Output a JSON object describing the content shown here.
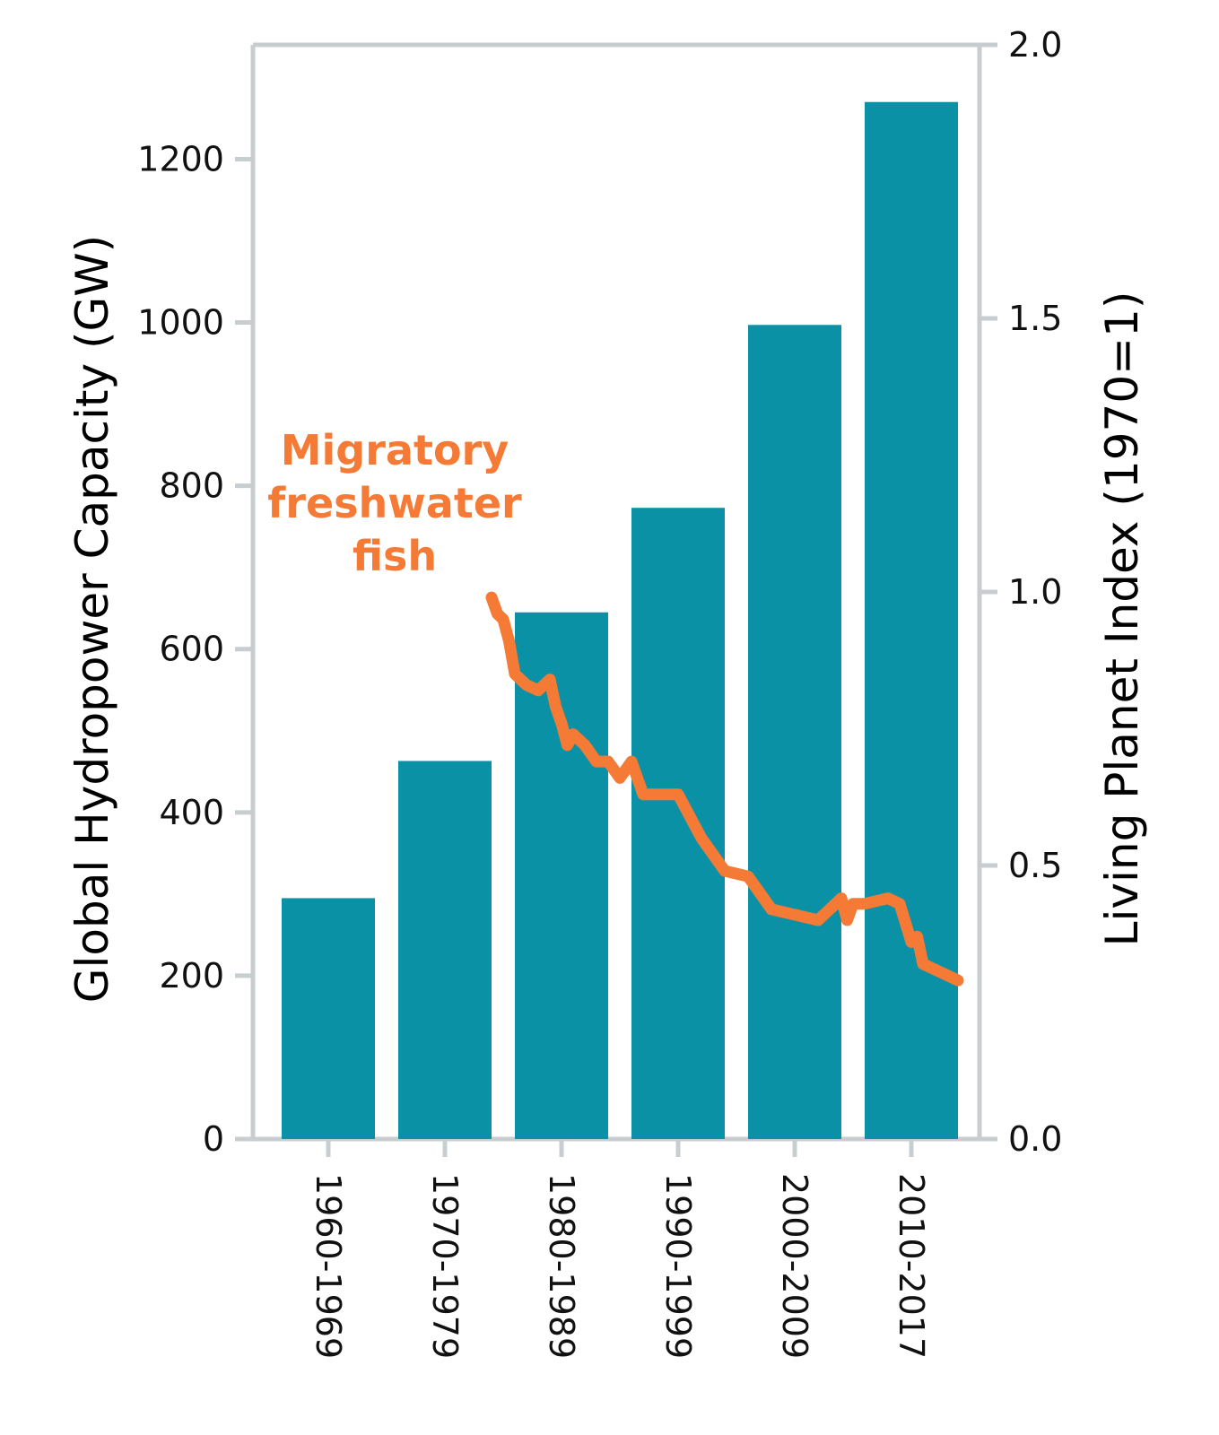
{
  "colors": {
    "bars": "#0a91a6",
    "line": "#f47a35",
    "axis": "#c8cdd0",
    "text": "#111111"
  },
  "chart_data": {
    "type": "bar",
    "categories": [
      "1960-1969",
      "1970-1979",
      "1980-1989",
      "1990-1999",
      "2000-2009",
      "2010-2017"
    ],
    "values": [
      295,
      463,
      645,
      773,
      997,
      1270
    ],
    "ylabel": "Global Hydropower Capacity (GW)",
    "ylim": [
      0,
      1340
    ],
    "yticks": [
      0,
      200,
      400,
      600,
      800,
      1000,
      1200
    ],
    "grid": false,
    "y2label": "Living Planet Index (1970=1)",
    "y2lim": [
      0,
      2.0
    ],
    "y2ticks": [
      "0.0",
      "0.5",
      "1.0",
      "1.5",
      "2.0"
    ],
    "line_series": {
      "x": [
        1970,
        1970.5,
        1971,
        1971.5,
        1972,
        1973,
        1974,
        1975,
        1975.5,
        1976,
        1976.5,
        1977,
        1978,
        1979,
        1980,
        1981,
        1982,
        1983,
        1984,
        1985,
        1986,
        1988,
        1990,
        1992,
        1994,
        1996,
        1998,
        2000,
        2000.5,
        2001,
        2002,
        2004,
        2005,
        2006,
        2006.5,
        2007,
        2008,
        2009,
        2010
      ],
      "y": [
        0.99,
        0.96,
        0.95,
        0.91,
        0.85,
        0.83,
        0.82,
        0.84,
        0.79,
        0.76,
        0.72,
        0.74,
        0.72,
        0.69,
        0.69,
        0.66,
        0.69,
        0.63,
        0.63,
        0.63,
        0.63,
        0.55,
        0.49,
        0.48,
        0.42,
        0.41,
        0.4,
        0.44,
        0.4,
        0.43,
        0.43,
        0.44,
        0.43,
        0.36,
        0.37,
        0.32,
        0.31,
        0.3,
        0.29
      ]
    }
  },
  "annotation": {
    "lines": [
      "Migratory",
      "freshwater",
      "fish"
    ]
  }
}
